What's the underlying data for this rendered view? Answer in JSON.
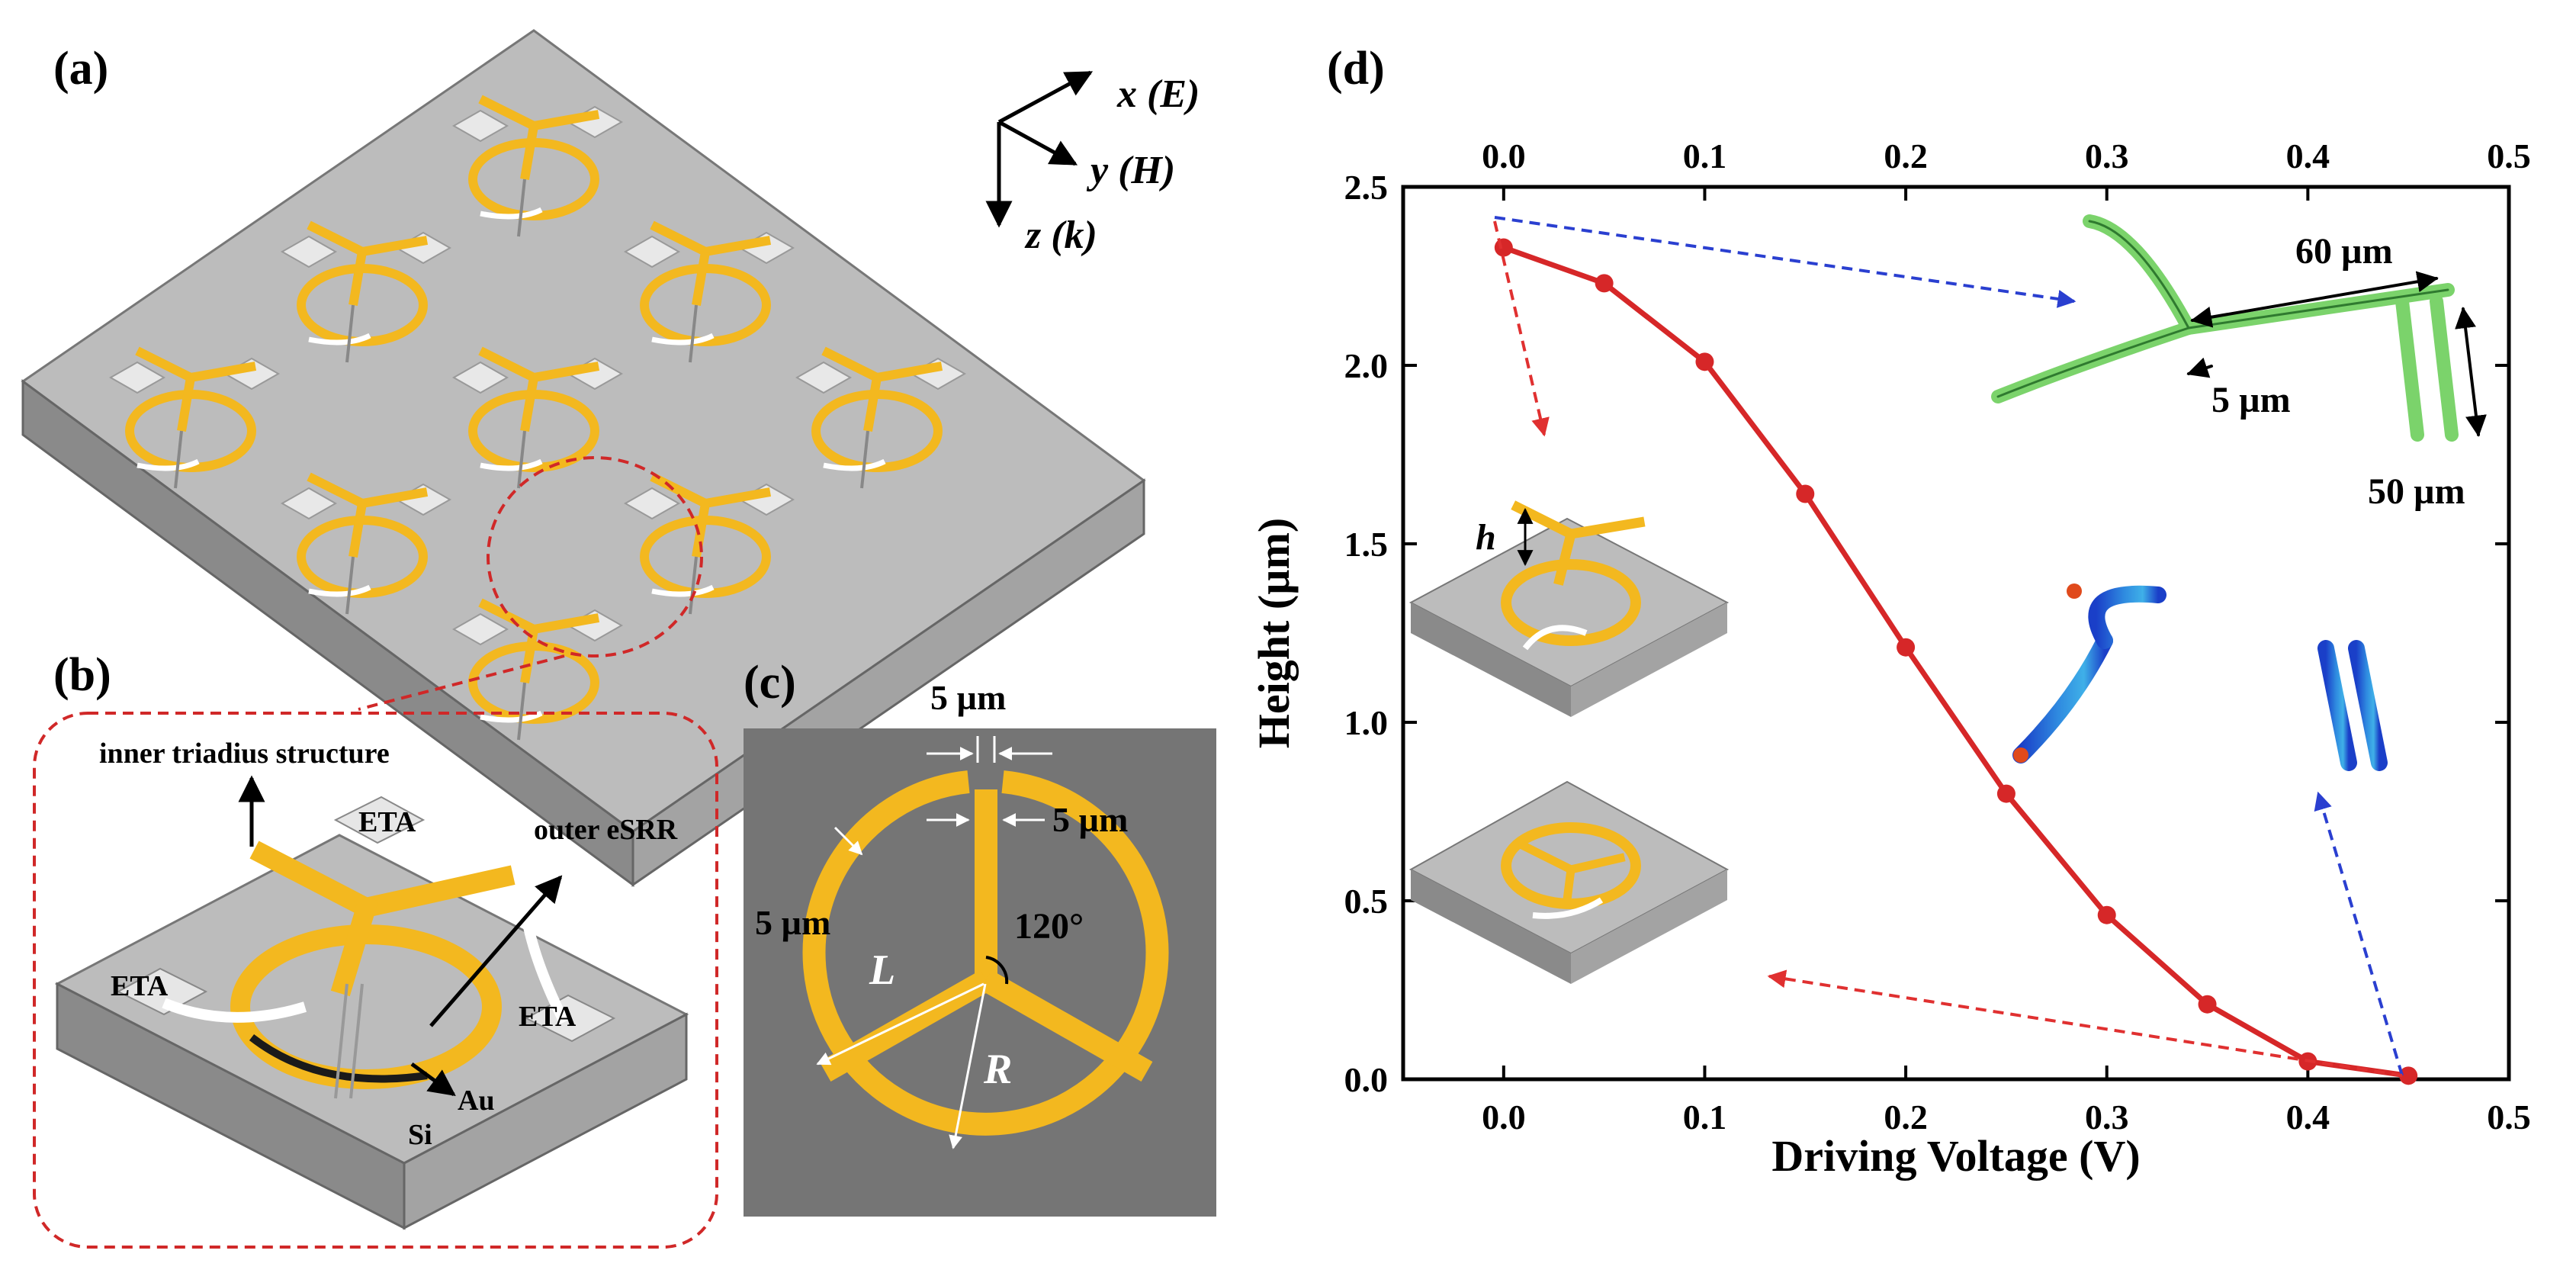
{
  "colors": {
    "curve": "#d62728",
    "gold": "#f3b81f",
    "substrate_top": "#bcbcbc",
    "substrate_side": "#8c8c8c",
    "panel_c_bg": "#757575",
    "arrow_red": "#e03030",
    "arrow_blue": "#2a3fd0",
    "sim_green": "#7bd36b",
    "sim_blue": "#2a63d8"
  },
  "panel_a": {
    "label": "(a)",
    "axes": {
      "x": "x (E)",
      "y": "y (H)",
      "z": "z (k)"
    }
  },
  "panel_b": {
    "label": "(b)",
    "annotations": {
      "inner": "inner triadius structure",
      "outer": "outer eSRR",
      "eta": "ETA",
      "au": "Au",
      "si": "Si"
    }
  },
  "panel_c": {
    "label": "(c)",
    "dims": {
      "top_gap": "5 µm",
      "beam_width": "5 µm",
      "ring_width": "5 µm",
      "angle": "120°",
      "L": "L",
      "R": "R"
    }
  },
  "panel_d": {
    "label": "(d)",
    "inset_h": "h",
    "inset_green": {
      "top": "60 µm",
      "mid": "5 µm",
      "side": "50 µm"
    }
  },
  "chart_data": {
    "type": "line",
    "title": "",
    "xlabel": "Driving Voltage (V)",
    "ylabel": "Height (µm)",
    "xlim": [
      -0.05,
      0.5
    ],
    "ylim": [
      0,
      2.5
    ],
    "x_ticks": [
      "0.0",
      "0.1",
      "0.2",
      "0.3",
      "0.4",
      "0.5"
    ],
    "y_ticks": [
      "0.0",
      "0.5",
      "1.0",
      "1.5",
      "2.0",
      "2.5"
    ],
    "x": [
      0.0,
      0.05,
      0.1,
      0.15,
      0.2,
      0.25,
      0.3,
      0.35,
      0.4,
      0.45
    ],
    "y": [
      2.33,
      2.23,
      2.01,
      1.64,
      1.21,
      0.8,
      0.46,
      0.21,
      0.05,
      0.01
    ]
  }
}
